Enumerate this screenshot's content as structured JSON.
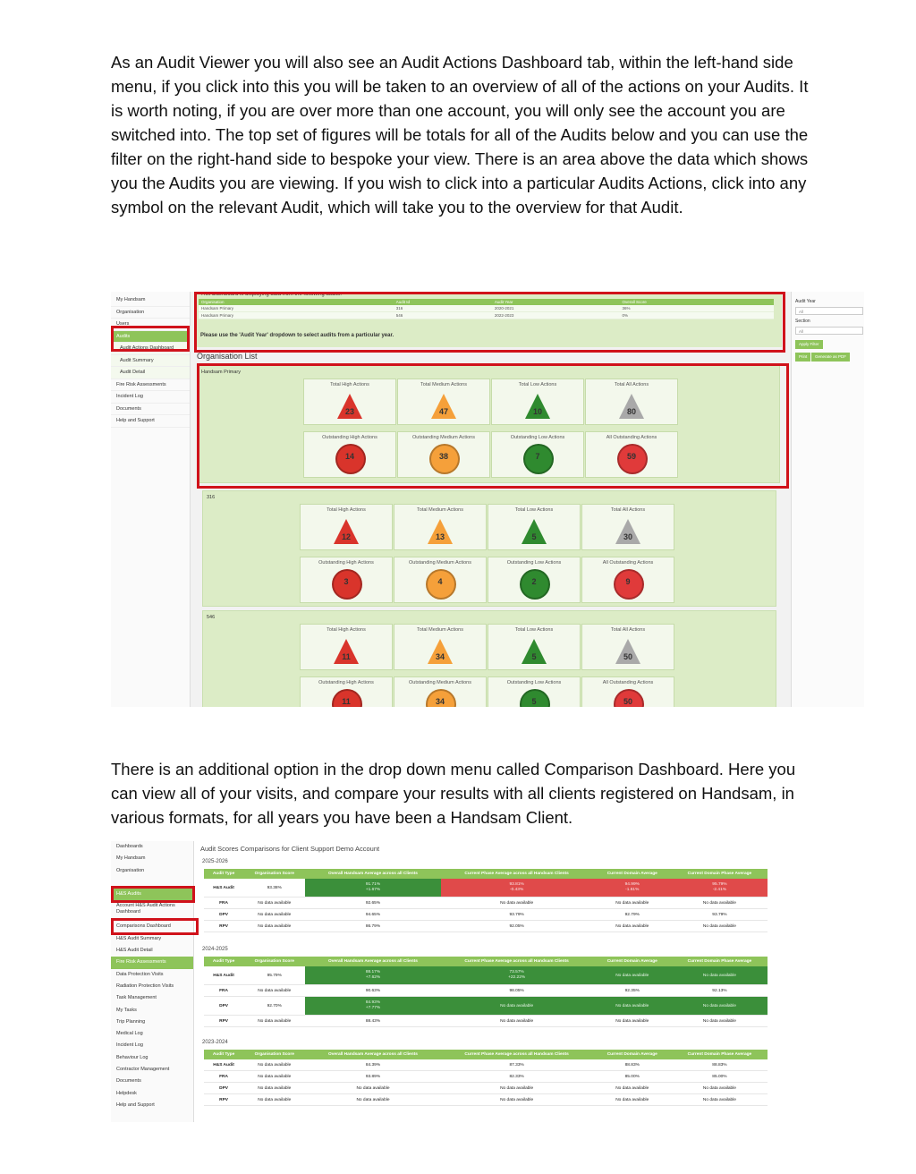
{
  "paragraphs": {
    "p1": "As an Audit Viewer you will also see an Audit Actions Dashboard tab, within the left-hand side menu, if you click into this you will be taken to an overview of all of the actions on your Audits. It is worth noting, if you are over more than one account, you will only see the account you are switched into. The top set of figures will be totals for all of the Audits below and you can use the filter on the right-hand side to bespoke your view. There is an area above the data which shows you the Audits you are viewing. If you wish to click into a particular Audits Actions, click into any symbol on the relevant Audit, which will take you to the overview for that Audit.",
    "p2": "There is an additional option in the drop down menu called Comparison Dashboard. Here you can view all of your visits, and compare your results with all clients registered on Handsam, in various formats, for all years you have been a Handsam Client."
  },
  "shot1": {
    "sidebar": [
      "My Handsam",
      "Organisation",
      "Users",
      "Audits",
      "Audit Actions Dashboard",
      "Audit Summary",
      "Audit Detail",
      "Fire Risk Assessments",
      "Incident Log",
      "Documents",
      "Help and Support"
    ],
    "header_text": "This Dashboard is displaying data from the following audits:",
    "audit_table": {
      "headers": [
        "Organisation",
        "Audit Id",
        "Audit Year",
        "Overall Score"
      ],
      "rows": [
        [
          "Handsam Primary",
          "316",
          "2020-2021",
          "36%"
        ],
        [
          "Handsam Primary",
          "546",
          "2022-2023",
          "0%"
        ]
      ]
    },
    "note": "Please use the 'Audit Year' dropdown to select audits from a particular year.",
    "org_list_title": "Organisation List",
    "tile_titles": [
      "Total High Actions",
      "Total Medium Actions",
      "Total Low Actions",
      "Total All Actions",
      "Outstanding High Actions",
      "Outstanding Medium Actions",
      "Outstanding Low Actions",
      "All Outstanding Actions"
    ],
    "groups": [
      {
        "name": "Handsam Primary",
        "totals": [
          "23",
          "47",
          "10",
          "80"
        ],
        "outstanding": [
          "14",
          "38",
          "7",
          "59"
        ]
      },
      {
        "name": "316",
        "totals": [
          "12",
          "13",
          "5",
          "30"
        ],
        "outstanding": [
          "3",
          "4",
          "2",
          "9"
        ]
      },
      {
        "name": "546",
        "totals": [
          "11",
          "34",
          "5",
          "50"
        ],
        "outstanding": [
          "11",
          "34",
          "5",
          "50"
        ]
      }
    ],
    "filter": {
      "audit_year_label": "Audit Year",
      "audit_year_value": "All",
      "section_label": "Section",
      "section_value": "All",
      "apply": "Apply Filter",
      "print": "Print",
      "pdf": "Generate as PDF"
    },
    "colors": {
      "high": "#d9342b",
      "medium": "#f5a03a",
      "low": "#2f8a2f",
      "all": "#a9a9a9",
      "all_outstanding": "#e03a3a"
    }
  },
  "shot2": {
    "sidebar": [
      "Dashboards",
      "My Handsam",
      "Organisation",
      "",
      "H&S Audits",
      "Account H&S Audit Actions Dashboard",
      "Comparisons Dashboard",
      "H&S Audit Summary",
      "H&S Audit Detail",
      "Fire Risk Assessments",
      "Data Protection Visits",
      "Radiation Protection Visits",
      "Task Management",
      "My Tasks",
      "Trip Planning",
      "Medical Log",
      "Incident Log",
      "Behaviour Log",
      "Contractor Management",
      "Documents",
      "Helpdesk",
      "Help and Support"
    ],
    "title": "Audit Scores Comparisons for Client Support Demo Account",
    "headers": [
      "Audit Type",
      "Organisation Score",
      "Overall Handsam Average across all Clients",
      "Current Phase Average across all Handsam Clients",
      "Current Domain Average",
      "Current Domain Phase Average"
    ],
    "years": [
      {
        "year": "2025-2026",
        "rows": [
          [
            "H&S Audit",
            "93.38%",
            "91.71%\n+1.67%",
            "93.81%\n-0.43%",
            "94.99%\n-1.61%",
            "95.79%\n-2.41%"
          ],
          [
            "FRA",
            "No data available",
            "92.65%",
            "No data available",
            "No data available",
            "No data available"
          ],
          [
            "DPV",
            "No data available",
            "94.65%",
            "93.79%",
            "92.79%",
            "93.79%"
          ],
          [
            "RPV",
            "No data available",
            "86.79%",
            "92.05%",
            "No data available",
            "No data available"
          ]
        ]
      },
      {
        "year": "2024-2025",
        "rows": [
          [
            "H&S Audit",
            "95.79%",
            "88.17%\n+7.62%",
            "73.57%\n+22.22%",
            "No data available",
            "No data available"
          ],
          [
            "FRA",
            "No data available",
            "90.63%",
            "98.05%",
            "92.35%",
            "92.13%"
          ],
          [
            "DPV",
            "92.70%",
            "84.93%\n+7.77%",
            "No data available",
            "No data available",
            "No data available"
          ],
          [
            "RPV",
            "No data available",
            "88.43%",
            "No data available",
            "No data available",
            "No data available"
          ]
        ]
      },
      {
        "year": "2023-2024",
        "rows": [
          [
            "H&S Audit",
            "No data available",
            "84.39%",
            "87.33%",
            "88.83%",
            "88.83%"
          ],
          [
            "FRA",
            "No data available",
            "93.89%",
            "82.33%",
            "85.00%",
            "85.00%"
          ],
          [
            "DPV",
            "No data available",
            "No data available",
            "No data available",
            "No data available",
            "No data available"
          ],
          [
            "RPV",
            "No data available",
            "No data available",
            "No data available",
            "No data available",
            "No data available"
          ]
        ]
      }
    ],
    "colors": {
      "header": "#8ec45a",
      "above": "#3b8f3a",
      "below": "#e04a4a"
    }
  }
}
